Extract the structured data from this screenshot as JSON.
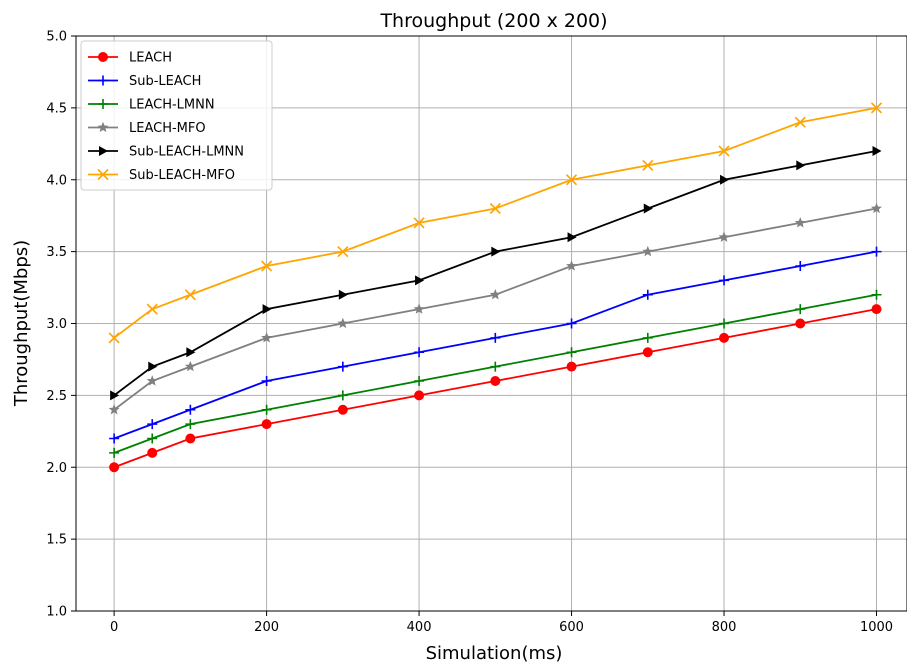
{
  "chart_data": {
    "type": "line",
    "title": "Throughput (200 x 200)",
    "xlabel": "Simulation(ms)",
    "ylabel": "Throughput(Mbps)",
    "x": [
      0,
      50,
      100,
      200,
      300,
      400,
      500,
      600,
      700,
      800,
      900,
      1000
    ],
    "xlim": [
      -50,
      1040
    ],
    "ylim": [
      1.0,
      5.0
    ],
    "xticks": [
      "0",
      "200",
      "400",
      "600",
      "800",
      "1000"
    ],
    "yticks": [
      "1.0",
      "1.5",
      "2.0",
      "2.5",
      "3.0",
      "3.5",
      "4.0",
      "4.5",
      "5.0"
    ],
    "grid": true,
    "legend_position": "top-left",
    "series": [
      {
        "name": "LEACH",
        "color": "#ff0000",
        "marker": "circle",
        "values": [
          2.0,
          2.1,
          2.2,
          2.3,
          2.4,
          2.5,
          2.6,
          2.7,
          2.8,
          2.9,
          3.0,
          3.1
        ]
      },
      {
        "name": "Sub-LEACH",
        "color": "#0000ff",
        "marker": "plus",
        "values": [
          2.2,
          2.3,
          2.4,
          2.6,
          2.7,
          2.8,
          2.9,
          3.0,
          3.2,
          3.3,
          3.4,
          3.5
        ]
      },
      {
        "name": "LEACH-LMNN",
        "color": "#008000",
        "marker": "plus",
        "values": [
          2.1,
          2.2,
          2.3,
          2.4,
          2.5,
          2.6,
          2.7,
          2.8,
          2.9,
          3.0,
          3.1,
          3.2
        ]
      },
      {
        "name": "LEACH-MFO",
        "color": "#808080",
        "marker": "star",
        "values": [
          2.4,
          2.6,
          2.7,
          2.9,
          3.0,
          3.1,
          3.2,
          3.4,
          3.5,
          3.6,
          3.7,
          3.8
        ]
      },
      {
        "name": "Sub-LEACH-LMNN",
        "color": "#000000",
        "marker": "triangle-right",
        "values": [
          2.5,
          2.7,
          2.8,
          3.1,
          3.2,
          3.3,
          3.5,
          3.6,
          3.8,
          4.0,
          4.1,
          4.2
        ]
      },
      {
        "name": "Sub-LEACH-MFO",
        "color": "#ffa500",
        "marker": "x",
        "values": [
          2.9,
          3.1,
          3.2,
          3.4,
          3.5,
          3.7,
          3.8,
          4.0,
          4.1,
          4.2,
          4.4,
          4.5
        ]
      }
    ]
  }
}
